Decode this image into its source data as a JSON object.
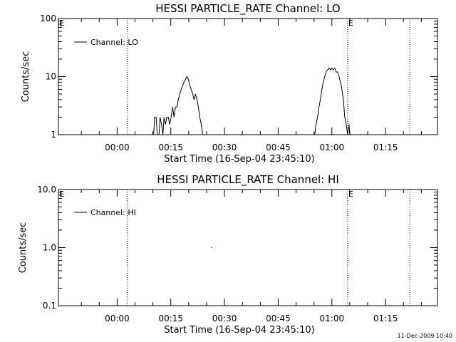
{
  "footer": {
    "timestamp": "11-Dec-2009 10:40"
  },
  "chart_data": [
    {
      "type": "line",
      "title": "HESSI PARTICLE_RATE Channel: LO",
      "xlabel": "Start Time (16-Sep-04 23:45:10)",
      "ylabel": "Counts/sec",
      "y_scale": "log",
      "ylim": [
        1,
        100
      ],
      "xlim": [
        -16.4,
        89.5
      ],
      "x_units": "minutes after 00:00",
      "x_ticks": [
        {
          "value": 0,
          "label": "00:00"
        },
        {
          "value": 15,
          "label": "00:15"
        },
        {
          "value": 30,
          "label": "00:30"
        },
        {
          "value": 45,
          "label": "00:45"
        },
        {
          "value": 60,
          "label": "01:00"
        },
        {
          "value": 75,
          "label": "01:15"
        }
      ],
      "y_ticks": [
        {
          "value": 1,
          "label": "1"
        },
        {
          "value": 10,
          "label": "10"
        },
        {
          "value": 100,
          "label": "100"
        }
      ],
      "vertical_markers": [
        {
          "x": 2.8,
          "label": ""
        },
        {
          "x": 64.4,
          "label": "E"
        },
        {
          "x": 81.8,
          "label": ""
        }
      ],
      "corner_label": "E",
      "legend": {
        "position": "top-left",
        "entries": [
          "Channel: LO"
        ]
      },
      "series": [
        {
          "name": "Channel: LO",
          "segments": [
            [
              [
                10.2,
                1
              ],
              [
                10.5,
                2
              ],
              [
                10.9,
                2
              ],
              [
                11.2,
                1
              ],
              [
                11.7,
                1
              ],
              [
                12.0,
                2
              ],
              [
                12.4,
                1.5
              ],
              [
                12.8,
                1
              ],
              [
                13.1,
                2
              ],
              [
                13.5,
                1.5
              ],
              [
                13.9,
                2
              ],
              [
                14.3,
                2
              ],
              [
                14.7,
                1.5
              ],
              [
                15.1,
                2
              ],
              [
                15.5,
                3
              ],
              [
                15.9,
                2
              ],
              [
                16.3,
                3
              ],
              [
                16.7,
                3
              ],
              [
                17.1,
                4
              ],
              [
                17.5,
                5
              ],
              [
                17.9,
                6
              ],
              [
                18.3,
                7
              ],
              [
                18.7,
                8
              ],
              [
                19.1,
                9
              ],
              [
                19.5,
                10
              ],
              [
                19.9,
                9
              ],
              [
                20.3,
                7
              ],
              [
                20.7,
                6
              ],
              [
                21.1,
                5
              ],
              [
                21.5,
                4
              ],
              [
                21.9,
                5
              ],
              [
                22.3,
                4
              ],
              [
                22.7,
                3
              ],
              [
                23.1,
                2
              ],
              [
                23.5,
                1.5
              ],
              [
                23.9,
                1
              ]
            ],
            [
              [
                55.2,
                1
              ],
              [
                55.6,
                1.5
              ],
              [
                56.0,
                2
              ],
              [
                56.4,
                3
              ],
              [
                56.8,
                4
              ],
              [
                57.2,
                6
              ],
              [
                57.6,
                8
              ],
              [
                58.0,
                10
              ],
              [
                58.4,
                12
              ],
              [
                58.8,
                13
              ],
              [
                59.2,
                14
              ],
              [
                59.6,
                13
              ],
              [
                60.0,
                14
              ],
              [
                60.4,
                13
              ],
              [
                60.8,
                14
              ],
              [
                61.2,
                12
              ],
              [
                61.6,
                12
              ],
              [
                62.0,
                10
              ],
              [
                62.4,
                8
              ],
              [
                62.8,
                6
              ],
              [
                63.2,
                4
              ],
              [
                63.6,
                2
              ],
              [
                64.0,
                1.5
              ],
              [
                64.4,
                1
              ],
              [
                64.8,
                1.5
              ],
              [
                65.0,
                1
              ]
            ]
          ]
        }
      ]
    },
    {
      "type": "line",
      "title": "HESSI PARTICLE_RATE Channel: HI",
      "xlabel": "Start Time (16-Sep-04 23:45:10)",
      "ylabel": "Counts/sec",
      "y_scale": "log",
      "ylim": [
        0.1,
        10
      ],
      "xlim": [
        -16.4,
        89.5
      ],
      "x_units": "minutes after 00:00",
      "x_ticks": [
        {
          "value": 0,
          "label": "00:00"
        },
        {
          "value": 15,
          "label": "00:15"
        },
        {
          "value": 30,
          "label": "00:30"
        },
        {
          "value": 45,
          "label": "00:45"
        },
        {
          "value": 60,
          "label": "01:00"
        },
        {
          "value": 75,
          "label": "01:15"
        }
      ],
      "y_ticks": [
        {
          "value": 0.1,
          "label": "0.1"
        },
        {
          "value": 1,
          "label": "1.0"
        },
        {
          "value": 10,
          "label": "10.0"
        }
      ],
      "vertical_markers": [
        {
          "x": 2.8,
          "label": ""
        },
        {
          "x": 64.4,
          "label": "E"
        },
        {
          "x": 81.8,
          "label": ""
        }
      ],
      "corner_label": "E",
      "legend": {
        "position": "top-left",
        "entries": [
          "Channel: HI"
        ]
      },
      "series": [
        {
          "name": "Channel: HI",
          "segments": [
            [
              [
                26.2,
                1.0
              ],
              [
                26.35,
                1.0
              ]
            ]
          ]
        }
      ]
    }
  ]
}
